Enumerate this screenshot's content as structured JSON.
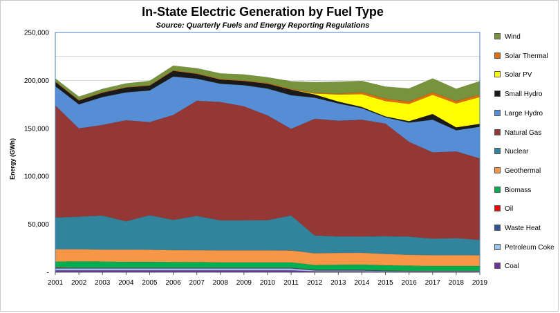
{
  "chart_data": {
    "type": "area",
    "stacked": true,
    "title": "In-State Electric Generation by Fuel Type",
    "subtitle": "Source: Quarterly Fuels and Energy Reporting Regulations",
    "xlabel": "",
    "ylabel": "Energy (GWh)",
    "ylim": [
      0,
      250000
    ],
    "yticks": [
      0,
      50000,
      100000,
      150000,
      200000,
      250000
    ],
    "ytick_labels": [
      "-",
      "50,000",
      "100,000",
      "150,000",
      "200,000",
      "250,000"
    ],
    "categories": [
      "2001",
      "2002",
      "2003",
      "2004",
      "2005",
      "2006",
      "2007",
      "2008",
      "2009",
      "2010",
      "2011",
      "2012",
      "2013",
      "2014",
      "2015",
      "2016",
      "2017",
      "2018",
      "2019"
    ],
    "series": [
      {
        "name": "Coal",
        "color": "#7030a0",
        "values": [
          2000,
          2000,
          2000,
          2000,
          2000,
          2000,
          2000,
          2000,
          2000,
          2000,
          2000,
          1000,
          1000,
          1000,
          500,
          300,
          300,
          300,
          300
        ]
      },
      {
        "name": "Petroleum Coke",
        "color": "#9dc3e6",
        "values": [
          2000,
          2000,
          2000,
          2000,
          2000,
          2000,
          2000,
          2000,
          2000,
          2000,
          2000,
          800,
          800,
          800,
          600,
          500,
          500,
          500,
          500
        ]
      },
      {
        "name": "Waste Heat",
        "color": "#2f5597",
        "values": [
          500,
          500,
          500,
          500,
          500,
          500,
          500,
          500,
          500,
          500,
          500,
          500,
          500,
          500,
          500,
          500,
          500,
          500,
          500
        ]
      },
      {
        "name": "Oil",
        "color": "#ff0000",
        "values": [
          500,
          300,
          300,
          300,
          300,
          300,
          300,
          300,
          300,
          300,
          300,
          200,
          200,
          200,
          200,
          200,
          200,
          200,
          200
        ]
      },
      {
        "name": "Biomass",
        "color": "#00b050",
        "values": [
          6000,
          6500,
          6300,
          6000,
          6000,
          5800,
          5700,
          5500,
          5500,
          5500,
          5500,
          5000,
          5300,
          5500,
          5500,
          5300,
          5000,
          5000,
          5000
        ]
      },
      {
        "name": "Geothermal",
        "color": "#f79646",
        "values": [
          13000,
          12700,
          12500,
          12800,
          12700,
          12500,
          12500,
          12500,
          12500,
          12500,
          12400,
          12300,
          12400,
          12300,
          11800,
          11400,
          11300,
          11300,
          11200
        ]
      },
      {
        "name": "Nuclear",
        "color": "#31849b",
        "values": [
          33000,
          34000,
          35500,
          29500,
          36000,
          31500,
          35700,
          31300,
          31300,
          31500,
          36500,
          18500,
          17200,
          17000,
          18500,
          19000,
          17200,
          17800,
          16000
        ]
      },
      {
        "name": "Natural Gas",
        "color": "#953735",
        "values": [
          117000,
          92000,
          94500,
          105400,
          97000,
          109400,
          120100,
          123400,
          118900,
          109200,
          90300,
          121700,
          120600,
          121700,
          117400,
          98800,
          90000,
          90400,
          85000
        ]
      },
      {
        "name": "Large Hydro",
        "color": "#558ed5",
        "values": [
          20000,
          25000,
          29000,
          29000,
          33000,
          40000,
          23000,
          19000,
          22000,
          28000,
          35000,
          22000,
          18000,
          12000,
          6500,
          20000,
          34000,
          22000,
          33000
        ]
      },
      {
        "name": "Small Hydro",
        "color": "#1a1a1a",
        "values": [
          4500,
          4000,
          4500,
          5000,
          5000,
          6000,
          5000,
          4300,
          4400,
          5000,
          5800,
          3300,
          2000,
          1300,
          1000,
          1500,
          6000,
          3000,
          3000
        ]
      },
      {
        "name": "Solar PV",
        "color": "#ffff00",
        "values": [
          0,
          0,
          0,
          0,
          0,
          0,
          0,
          0,
          0,
          0,
          0,
          1000,
          7300,
          13400,
          16000,
          18000,
          20000,
          25000,
          28000
        ]
      },
      {
        "name": "Solar Thermal",
        "color": "#e46c0a",
        "values": [
          600,
          600,
          600,
          600,
          600,
          600,
          600,
          700,
          600,
          800,
          800,
          800,
          900,
          2000,
          2500,
          2500,
          2500,
          2500,
          2500
        ]
      },
      {
        "name": "Wind",
        "color": "#77933c",
        "values": [
          3000,
          3500,
          3500,
          3800,
          4400,
          4800,
          5300,
          5800,
          6200,
          6000,
          8000,
          11000,
          12500,
          11800,
          12500,
          13600,
          14600,
          12800,
          14000
        ]
      }
    ],
    "legend_position": "right",
    "grid": true
  }
}
